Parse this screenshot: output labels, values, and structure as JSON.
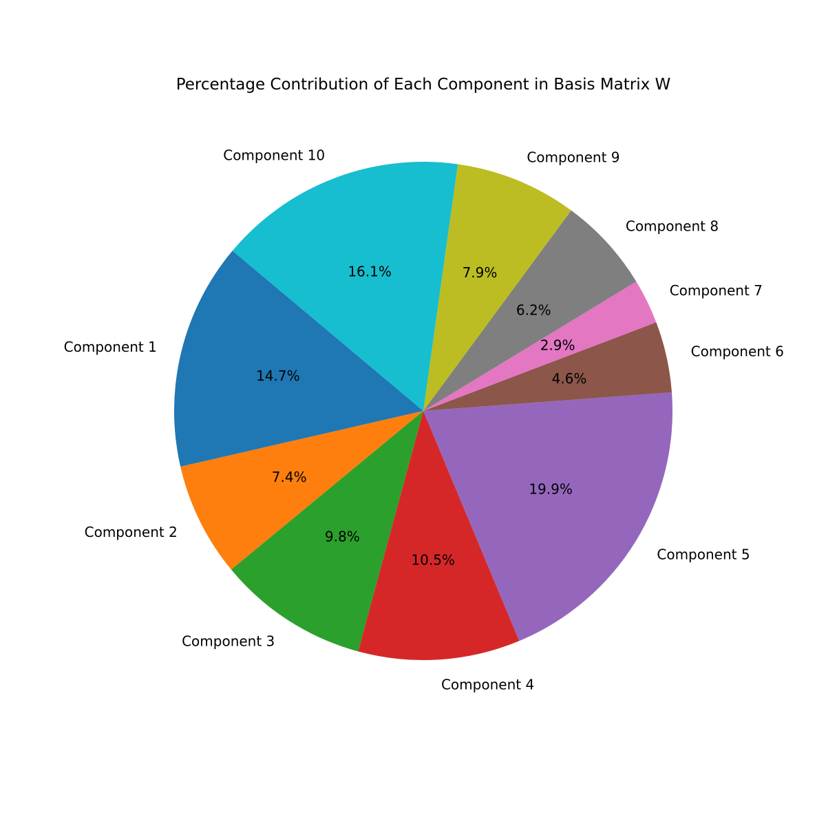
{
  "chart_data": {
    "type": "pie",
    "title": "Percentage Contribution of Each Component in Basis Matrix W",
    "start_angle_deg": 140,
    "direction": "counterclockwise",
    "slices": [
      {
        "label": "Component 1",
        "value": 14.7,
        "pct_label": "14.7%",
        "color": "#1f77b4"
      },
      {
        "label": "Component 2",
        "value": 7.4,
        "pct_label": "7.4%",
        "color": "#ff7f0e"
      },
      {
        "label": "Component 3",
        "value": 9.8,
        "pct_label": "9.8%",
        "color": "#2ca02c"
      },
      {
        "label": "Component 4",
        "value": 10.5,
        "pct_label": "10.5%",
        "color": "#d62728"
      },
      {
        "label": "Component 5",
        "value": 19.9,
        "pct_label": "19.9%",
        "color": "#9467bd"
      },
      {
        "label": "Component 6",
        "value": 4.6,
        "pct_label": "4.6%",
        "color": "#8c564b"
      },
      {
        "label": "Component 7",
        "value": 2.9,
        "pct_label": "2.9%",
        "color": "#e377c2"
      },
      {
        "label": "Component 8",
        "value": 6.2,
        "pct_label": "6.2%",
        "color": "#7f7f7f"
      },
      {
        "label": "Component 9",
        "value": 7.9,
        "pct_label": "7.9%",
        "color": "#bcbd22"
      },
      {
        "label": "Component 10",
        "value": 16.1,
        "pct_label": "16.1%",
        "color": "#17becf"
      }
    ]
  }
}
